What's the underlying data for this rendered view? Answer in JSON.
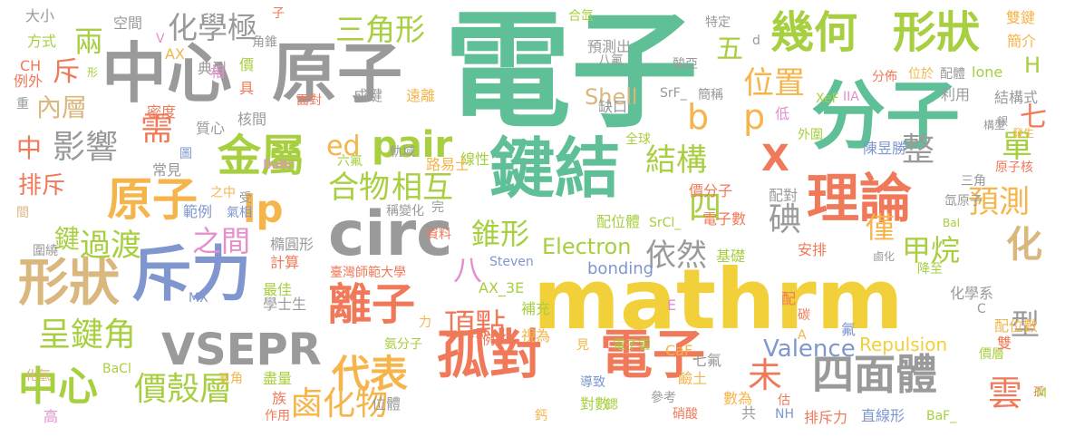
{
  "palette": {
    "green": "#5fbf96",
    "gray": "#9a9a9a",
    "yellow": "#f2d03a",
    "salmon": "#f0795a",
    "lime": "#a7cf3f",
    "tan": "#d9b77d",
    "blue": "#7f96cf",
    "pink": "#e58fcd",
    "orange": "#f5b54b"
  },
  "words": [
    {
      "text": "電子"
    },
    {
      "text": "mathrm"
    },
    {
      "text": "分子"
    },
    {
      "text": "中心"
    },
    {
      "text": "原子"
    },
    {
      "text": "鍵結"
    },
    {
      "text": "孤對"
    },
    {
      "text": "電子"
    },
    {
      "text": "circ"
    },
    {
      "text": "斥力"
    },
    {
      "text": "形狀"
    },
    {
      "text": "理論"
    },
    {
      "text": "幾何"
    },
    {
      "text": "形狀"
    },
    {
      "text": "VSEPR"
    },
    {
      "text": "離子"
    },
    {
      "text": "金屬"
    },
    {
      "text": "原子"
    },
    {
      "text": "四面體"
    },
    {
      "text": "化學極"
    },
    {
      "text": "三角形"
    },
    {
      "text": "b"
    },
    {
      "text": "p"
    },
    {
      "text": "lp"
    },
    {
      "text": "pair"
    },
    {
      "text": "ed"
    },
    {
      "text": "中心"
    },
    {
      "text": "價殼層"
    },
    {
      "text": "代表"
    },
    {
      "text": "鹵化物"
    },
    {
      "text": "呈鍵角"
    },
    {
      "text": "影響"
    },
    {
      "text": "結構"
    },
    {
      "text": "合物"
    },
    {
      "text": "相互"
    },
    {
      "text": "頂點"
    },
    {
      "text": "過渡"
    },
    {
      "text": "之間"
    },
    {
      "text": "預測"
    },
    {
      "text": "依然"
    },
    {
      "text": "甲烷"
    },
    {
      "text": "位置"
    },
    {
      "text": "錐形"
    },
    {
      "text": "雲"
    },
    {
      "text": "四"
    },
    {
      "text": "X"
    },
    {
      "text": "兩"
    },
    {
      "text": "八"
    },
    {
      "text": "排斥"
    },
    {
      "text": "鍵"
    },
    {
      "text": "中"
    },
    {
      "text": "內層"
    },
    {
      "text": "Valence"
    },
    {
      "text": "Electron"
    },
    {
      "text": "Shell"
    },
    {
      "text": "Repulsion"
    },
    {
      "text": "bonding"
    },
    {
      "text": "整"
    },
    {
      "text": "單"
    },
    {
      "text": "碘"
    },
    {
      "text": "化"
    },
    {
      "text": "僅"
    },
    {
      "text": "未"
    },
    {
      "text": "型"
    },
    {
      "text": "需"
    },
    {
      "text": "七"
    },
    {
      "text": "五"
    },
    {
      "text": "H"
    },
    {
      "text": "斥"
    },
    {
      "text": "大小"
    },
    {
      "text": "方式"
    },
    {
      "text": "CH"
    },
    {
      "text": "例外"
    },
    {
      "text": "重"
    },
    {
      "text": "空間"
    },
    {
      "text": "AX"
    },
    {
      "text": "典型"
    },
    {
      "text": "角錐"
    },
    {
      "text": "子"
    },
    {
      "text": "價"
    },
    {
      "text": "具"
    },
    {
      "text": "相"
    },
    {
      "text": "形"
    },
    {
      "text": "成鍵"
    },
    {
      "text": "遠離"
    },
    {
      "text": "密度"
    },
    {
      "text": "質心"
    },
    {
      "text": "核間"
    },
    {
      "text": "面對"
    },
    {
      "text": "常見"
    },
    {
      "text": "圖"
    },
    {
      "text": "線性"
    },
    {
      "text": "全球"
    },
    {
      "text": "六氟"
    },
    {
      "text": "軌域"
    },
    {
      "text": "路易士"
    },
    {
      "text": "陳昱勝"
    },
    {
      "text": "BaBr"
    },
    {
      "text": "之中"
    },
    {
      "text": "受"
    },
    {
      "text": "範例"
    },
    {
      "text": "氣相"
    },
    {
      "text": "稱變化"
    },
    {
      "text": "完"
    },
    {
      "text": "價分子"
    },
    {
      "text": "配對"
    },
    {
      "text": "配位體"
    },
    {
      "text": "電子數"
    },
    {
      "text": "SrCl_"
    },
    {
      "text": "資料"
    },
    {
      "text": "橢圓形"
    },
    {
      "text": "計算"
    },
    {
      "text": "臺灣師範大學"
    },
    {
      "text": "Steven"
    },
    {
      "text": "AX_3E"
    },
    {
      "text": "最佳"
    },
    {
      "text": "學士生"
    },
    {
      "text": "氨分子"
    },
    {
      "text": "例子"
    },
    {
      "text": "補充"
    },
    {
      "text": "視為"
    },
    {
      "text": "見"
    },
    {
      "text": "電子雲"
    },
    {
      "text": "CaF_"
    },
    {
      "text": "鹼土"
    },
    {
      "text": "七氟"
    },
    {
      "text": "參考"
    },
    {
      "text": "數為"
    },
    {
      "text": "硝酸"
    },
    {
      "text": "共"
    },
    {
      "text": "NH"
    },
    {
      "text": "排斥力"
    },
    {
      "text": "直線形"
    },
    {
      "text": "BaF_"
    },
    {
      "text": "盡量"
    },
    {
      "text": "五角"
    },
    {
      "text": "族"
    },
    {
      "text": "作用"
    },
    {
      "text": "位體"
    },
    {
      "text": "導致"
    },
    {
      "text": "對數"
    },
    {
      "text": "鈣"
    },
    {
      "text": "化氫"
    },
    {
      "text": "BaCl"
    },
    {
      "text": "高"
    },
    {
      "text": "圍繞"
    },
    {
      "text": "間"
    },
    {
      "text": "MX"
    },
    {
      "text": "合氙"
    },
    {
      "text": "預測出"
    },
    {
      "text": "八氟"
    },
    {
      "text": "酸亞"
    },
    {
      "text": "特定"
    },
    {
      "text": "雙鍵"
    },
    {
      "text": "簡介"
    },
    {
      "text": "分佈"
    },
    {
      "text": "位於"
    },
    {
      "text": "配體"
    },
    {
      "text": "lone"
    },
    {
      "text": "XeF"
    },
    {
      "text": "SrF_"
    },
    {
      "text": "簡稱"
    },
    {
      "text": "缺口"
    },
    {
      "text": "結構式"
    },
    {
      "text": "利用"
    },
    {
      "text": "銀"
    },
    {
      "text": "發生"
    },
    {
      "text": "構型"
    },
    {
      "text": "原子核"
    },
    {
      "text": "三角"
    },
    {
      "text": "氙原子"
    },
    {
      "text": "BaI"
    },
    {
      "text": "鹵化"
    },
    {
      "text": "降至"
    },
    {
      "text": "安排"
    },
    {
      "text": "基礎"
    },
    {
      "text": "化學系"
    },
    {
      "text": "配位數"
    },
    {
      "text": "價層"
    },
    {
      "text": "雙"
    },
    {
      "text": "氟"
    },
    {
      "text": "碳"
    },
    {
      "text": "配"
    },
    {
      "text": "鍶"
    },
    {
      "text": "孤"
    },
    {
      "text": "估"
    },
    {
      "text": "低"
    },
    {
      "text": "外圍"
    },
    {
      "text": "IIA"
    },
    {
      "text": "d"
    },
    {
      "text": "V"
    },
    {
      "text": "E"
    },
    {
      "text": "A"
    },
    {
      "text": "C"
    },
    {
      "text": "M"
    },
    {
      "text": "力"
    }
  ]
}
